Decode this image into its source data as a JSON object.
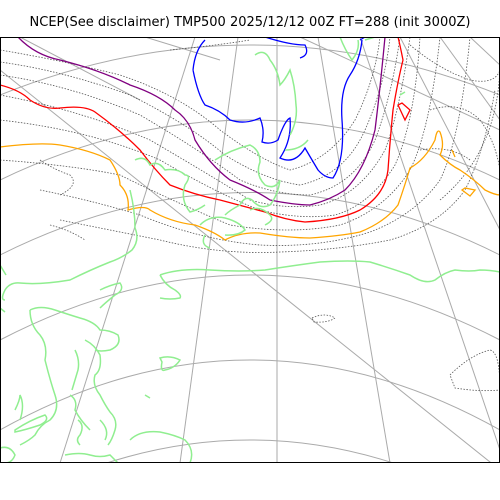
{
  "title": "NCEP(See disclaimer) TMP500 2025/12/12 00Z FT=288 (init 3000Z)",
  "map": {
    "projection": "polar-stereographic",
    "graticule_color": "#aaaaaa",
    "coastline_color": "#90ee90",
    "isotherm_color": "#555555",
    "highlight_colors": {
      "blue": "#0000ff",
      "purple": "#800080",
      "red": "#ff0000",
      "orange": "#ffa500"
    }
  }
}
